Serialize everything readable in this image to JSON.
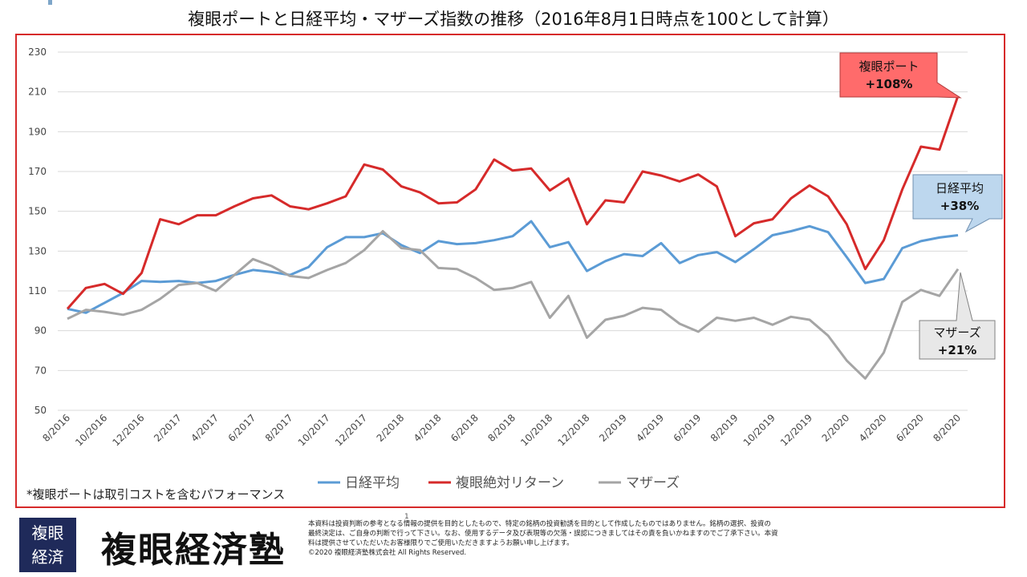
{
  "title": "複眼ポートと日経平均・マザーズ指数の推移（2016年8月1日時点を100として計算）",
  "note": "*複眼ポートは取引コストを含むパフォーマンス",
  "page_number": "1",
  "logo": {
    "box_line1": "複眼",
    "box_line2": "経済",
    "name": "複眼経済塾"
  },
  "disclaimer": {
    "line1": "本資料は投資判断の参考となる情報の提供を目的としたもので、特定の銘柄の投資勧誘を目的として作成したものではありません。銘柄の選択、投資の",
    "line2": "最終決定は、ご自身の判断で行って下さい。なお、使用するデータ及び表現等の欠落・誤認につきましてはその責を負いかねますのでご了承下さい。本資",
    "line3": "料は提供させていただいたお客様限りでご使用いただきますようお願い申し上げます。",
    "line4": "©2020 複眼経済塾株式会社 All Rights Reserved."
  },
  "callouts": {
    "fukugan": {
      "line1": "複眼ポート",
      "line2": "+108%",
      "color": "#ff6b6b"
    },
    "nikkei": {
      "line1": "日経平均",
      "line2": "+38%",
      "color": "#bdd7ee"
    },
    "mothers": {
      "line1": "マザーズ",
      "line2": "+21%",
      "color": "#e8e8e8"
    }
  },
  "chart_data": {
    "type": "line",
    "ylim": [
      50,
      230
    ],
    "y_ticks": [
      50,
      70,
      90,
      110,
      130,
      150,
      170,
      190,
      210,
      230
    ],
    "x_tick_labels": [
      "8/2016",
      "10/2016",
      "12/2016",
      "2/2017",
      "4/2017",
      "6/2017",
      "8/2017",
      "10/2017",
      "12/2017",
      "2/2018",
      "4/2018",
      "6/2018",
      "8/2018",
      "10/2018",
      "12/2018",
      "2/2019",
      "4/2019",
      "6/2019",
      "8/2019",
      "10/2019",
      "12/2019",
      "2/2020",
      "4/2020",
      "6/2020",
      "8/2020"
    ],
    "grid": true,
    "legend_position": "bottom",
    "series": [
      {
        "name": "日経平均",
        "color": "#5b9bd5",
        "values": [
          101,
          99,
          104,
          109,
          115,
          114.5,
          115,
          114,
          115,
          118,
          120.5,
          119.5,
          118,
          122,
          132,
          137,
          137,
          139,
          133,
          129,
          135,
          133.5,
          134,
          135.5,
          137.5,
          145,
          132,
          134.5,
          120,
          125,
          128.5,
          127.5,
          134,
          124,
          128,
          129.5,
          124.5,
          131,
          138,
          140,
          142.5,
          139.5,
          127,
          114,
          116,
          131.5,
          135,
          136.8,
          138
        ]
      },
      {
        "name": "複眼絶対リターン",
        "color": "#d62a2a",
        "values": [
          101,
          111.5,
          113.5,
          108.5,
          119,
          146,
          143.5,
          148,
          148,
          152.5,
          156.5,
          158,
          152.5,
          151,
          154,
          157.5,
          173.5,
          171,
          162.5,
          159.5,
          154,
          154.5,
          161,
          176,
          170.5,
          171.5,
          160.5,
          166.5,
          143.5,
          155.5,
          154.5,
          170,
          168,
          165,
          168.5,
          162.5,
          137.5,
          144,
          146,
          156.5,
          163,
          157.5,
          143.5,
          121,
          135.5,
          161,
          182.5,
          181,
          208
        ]
      },
      {
        "name": "マザーズ",
        "color": "#a5a5a5",
        "values": [
          96,
          100.5,
          99.5,
          98,
          100.5,
          106,
          113,
          114,
          110,
          118,
          126,
          122.5,
          117.5,
          116.5,
          120.5,
          124,
          130.5,
          140,
          131.5,
          130.5,
          121.5,
          121,
          116.5,
          110.5,
          111.5,
          114.5,
          96.5,
          107.5,
          86.5,
          95.5,
          97.5,
          101.5,
          100.5,
          93.5,
          89.5,
          96.5,
          95,
          96.5,
          93,
          97,
          95.5,
          87.5,
          75,
          66,
          79,
          104.5,
          110.5,
          107.5,
          121
        ]
      }
    ]
  }
}
